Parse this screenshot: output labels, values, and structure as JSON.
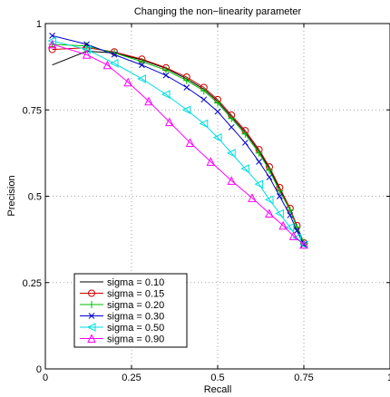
{
  "chart_data": {
    "type": "line",
    "title": "Changing the non−linearity parameter",
    "xlabel": "Recall",
    "ylabel": "Precision",
    "xlim": [
      0,
      1
    ],
    "ylim": [
      0,
      1
    ],
    "xticks": [
      0,
      0.25,
      0.5,
      0.75,
      1
    ],
    "yticks": [
      0,
      0.25,
      0.5,
      0.75,
      1
    ],
    "xtick_labels": [
      "0",
      "0.25",
      "0.5",
      "0.75",
      "1"
    ],
    "ytick_labels": [
      "0",
      "0.25",
      "0.5",
      "0.75",
      "1"
    ],
    "grid": true,
    "legend_position": "bottom-left",
    "series": [
      {
        "name": "sigma = 0.10",
        "color": "#000000",
        "marker": "none",
        "x": [
          0.02,
          0.12,
          0.2,
          0.28,
          0.35,
          0.41,
          0.46,
          0.5,
          0.54,
          0.58,
          0.62,
          0.65,
          0.68,
          0.71,
          0.73,
          0.75
        ],
        "y": [
          0.88,
          0.92,
          0.915,
          0.895,
          0.87,
          0.84,
          0.81,
          0.775,
          0.73,
          0.685,
          0.63,
          0.58,
          0.52,
          0.46,
          0.41,
          0.36
        ]
      },
      {
        "name": "sigma = 0.15",
        "color": "#cc0000",
        "marker": "circle",
        "x": [
          0.02,
          0.12,
          0.2,
          0.28,
          0.35,
          0.41,
          0.46,
          0.5,
          0.54,
          0.58,
          0.62,
          0.65,
          0.68,
          0.71,
          0.73,
          0.75
        ],
        "y": [
          0.925,
          0.93,
          0.918,
          0.897,
          0.872,
          0.845,
          0.815,
          0.78,
          0.735,
          0.69,
          0.635,
          0.585,
          0.525,
          0.465,
          0.415,
          0.365
        ]
      },
      {
        "name": "sigma = 0.20",
        "color": "#00bb00",
        "marker": "plus",
        "x": [
          0.02,
          0.12,
          0.2,
          0.28,
          0.35,
          0.41,
          0.46,
          0.5,
          0.54,
          0.58,
          0.62,
          0.65,
          0.68,
          0.71,
          0.73,
          0.75
        ],
        "y": [
          0.94,
          0.935,
          0.915,
          0.89,
          0.865,
          0.835,
          0.805,
          0.77,
          0.725,
          0.68,
          0.625,
          0.575,
          0.515,
          0.46,
          0.41,
          0.365
        ]
      },
      {
        "name": "sigma = 0.30",
        "color": "#0000cc",
        "marker": "x",
        "x": [
          0.02,
          0.12,
          0.2,
          0.28,
          0.35,
          0.41,
          0.46,
          0.5,
          0.54,
          0.58,
          0.62,
          0.65,
          0.68,
          0.71,
          0.73,
          0.75
        ],
        "y": [
          0.965,
          0.94,
          0.91,
          0.88,
          0.85,
          0.815,
          0.78,
          0.745,
          0.7,
          0.655,
          0.6,
          0.555,
          0.5,
          0.445,
          0.4,
          0.36
        ]
      },
      {
        "name": "sigma = 0.50",
        "color": "#00dddd",
        "marker": "triangle-left",
        "x": [
          0.02,
          0.12,
          0.2,
          0.28,
          0.35,
          0.41,
          0.46,
          0.5,
          0.54,
          0.58,
          0.62,
          0.65,
          0.68,
          0.71,
          0.73,
          0.75
        ],
        "y": [
          0.95,
          0.925,
          0.885,
          0.84,
          0.795,
          0.75,
          0.71,
          0.67,
          0.625,
          0.58,
          0.535,
          0.49,
          0.45,
          0.41,
          0.38,
          0.36
        ]
      },
      {
        "name": "sigma = 0.90",
        "color": "#ff00ff",
        "marker": "triangle-up",
        "x": [
          0.02,
          0.12,
          0.18,
          0.24,
          0.3,
          0.36,
          0.42,
          0.48,
          0.54,
          0.6,
          0.65,
          0.69,
          0.72,
          0.75
        ],
        "y": [
          0.94,
          0.91,
          0.88,
          0.83,
          0.775,
          0.715,
          0.655,
          0.6,
          0.545,
          0.495,
          0.45,
          0.415,
          0.385,
          0.36
        ]
      }
    ]
  }
}
